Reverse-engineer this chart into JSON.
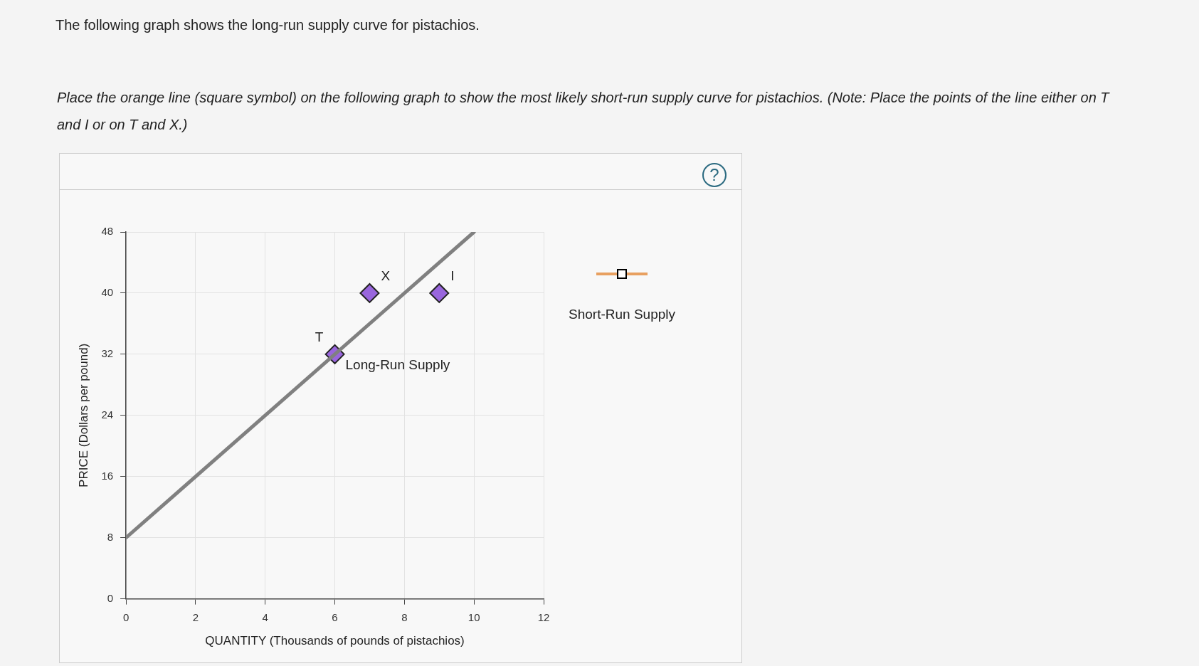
{
  "chart_data": {
    "type": "line",
    "title": "The following graph shows the long-run supply curve for pistachios.",
    "subtitle": "Place the orange line (square symbol) on the following graph to show the most likely short-run supply curve for pistachios. (Note: Place the points of the line either on T and I or on T and X.)",
    "xlabel": "QUANTITY (Thousands of pounds of pistachios)",
    "ylabel": "PRICE (Dollars per pound)",
    "series": [
      {
        "name": "Long-Run Supply",
        "type": "line",
        "color": "#808080",
        "marker": "none",
        "x": [
          0,
          10
        ],
        "values": [
          8,
          48
        ]
      },
      {
        "type": "scatter",
        "color": "#9966dd",
        "marker": "diamond",
        "x": [
          6,
          7,
          9
        ],
        "values": [
          32,
          40,
          40
        ]
      }
    ],
    "annotations": [
      {
        "text": "T",
        "x": 6,
        "y": 32
      },
      {
        "text": "X",
        "x": 7,
        "y": 40
      },
      {
        "text": "I",
        "x": 9,
        "y": 40
      },
      "Short-Run Supply",
      "?"
    ],
    "xlim": [
      0,
      12
    ],
    "xticks": [
      0,
      2,
      4,
      6,
      8,
      10,
      12
    ],
    "ylim": [
      0,
      48
    ],
    "yticks": [
      0,
      8,
      16,
      24,
      32,
      40,
      48
    ],
    "grid": true
  }
}
